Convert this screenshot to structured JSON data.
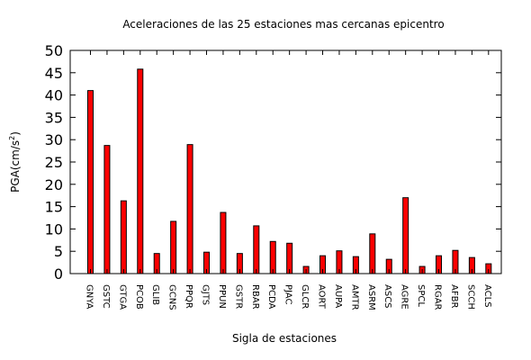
{
  "chart_data": {
    "type": "bar",
    "title": "Aceleraciones de las 25 estaciones mas cercanas epicentro",
    "xlabel": "Sigla de estaciones",
    "ylabel": "PGA(cm/s",
    "ylabel_sup": "2",
    "ylabel_tail": ")",
    "ylim": [
      0,
      50
    ],
    "yticks": [
      0,
      5,
      10,
      15,
      20,
      25,
      30,
      35,
      40,
      45,
      50
    ],
    "categories": [
      "GNYA",
      "GSTC",
      "GTGA",
      "PCOB",
      "GLIB",
      "GCNS",
      "PPQR",
      "GJTS",
      "PPUN",
      "GSTR",
      "RBAR",
      "PCDA",
      "PJAC",
      "GLCR",
      "AORT",
      "AUPA",
      "AMTR",
      "ASRM",
      "ASCS",
      "AGRE",
      "SPCL",
      "RGAR",
      "AFBR",
      "SCCH",
      "ACLS"
    ],
    "values": [
      41,
      28.7,
      16.3,
      45.8,
      4.5,
      11.7,
      28.9,
      4.8,
      13.7,
      4.5,
      10.7,
      7.2,
      6.8,
      1.6,
      4.0,
      5.1,
      3.8,
      8.9,
      3.2,
      17.0,
      1.6,
      4.0,
      5.2,
      3.6,
      2.2
    ],
    "grid": false,
    "legend": "none"
  }
}
